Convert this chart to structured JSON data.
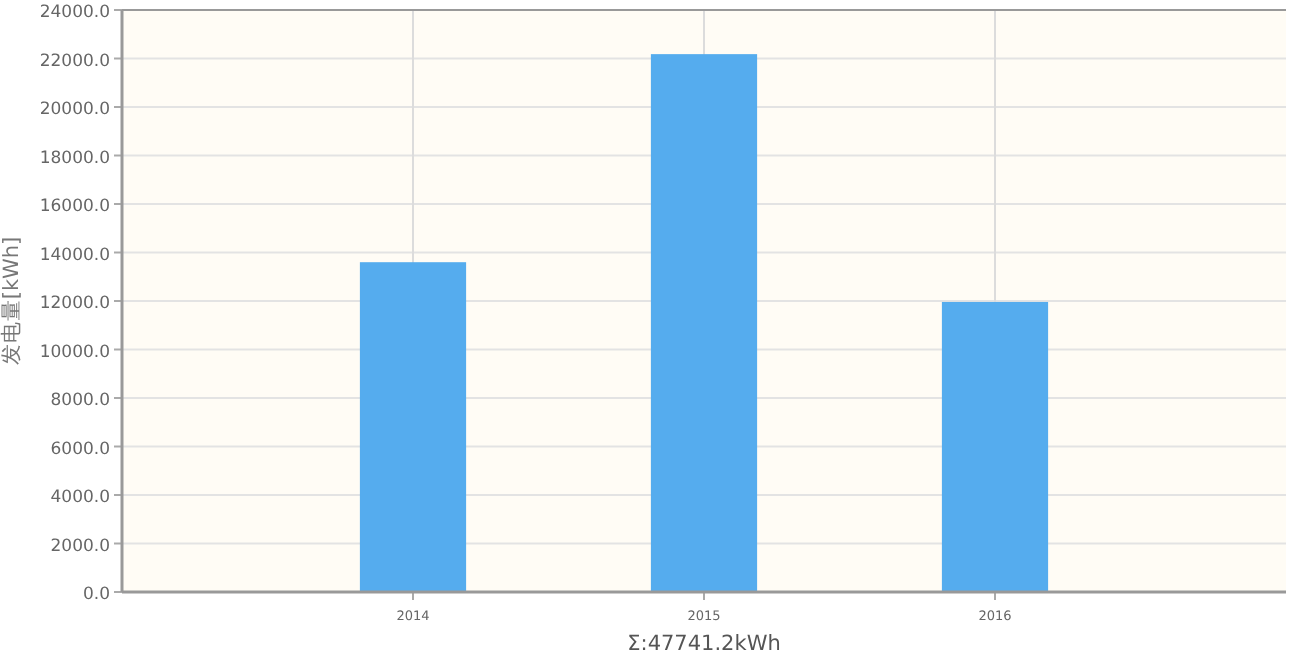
{
  "chart_data": {
    "type": "bar",
    "ylabel": "发电量[kWh]",
    "xlabel": "Σ:47741.2kWh",
    "categories": [
      "2014",
      "2015",
      "2016"
    ],
    "series": [
      {
        "color": "#55acee",
        "values": [
          13600,
          22180,
          11960
        ]
      }
    ],
    "ylim": [
      0,
      24000
    ],
    "yticks": [
      {
        "value": 0,
        "label": "0.0"
      },
      {
        "value": 2000,
        "label": "2000.0"
      },
      {
        "value": 4000,
        "label": "4000.0"
      },
      {
        "value": 6000,
        "label": "6000.0"
      },
      {
        "value": 8000,
        "label": "8000.0"
      },
      {
        "value": 10000,
        "label": "10000.0"
      },
      {
        "value": 12000,
        "label": "12000.0"
      },
      {
        "value": 14000,
        "label": "14000.0"
      },
      {
        "value": 16000,
        "label": "16000.0"
      },
      {
        "value": 18000,
        "label": "18000.0"
      },
      {
        "value": 20000,
        "label": "20000.0"
      },
      {
        "value": 22000,
        "label": "22000.0"
      },
      {
        "value": 24000,
        "label": "24000.0"
      }
    ],
    "grid": true
  }
}
